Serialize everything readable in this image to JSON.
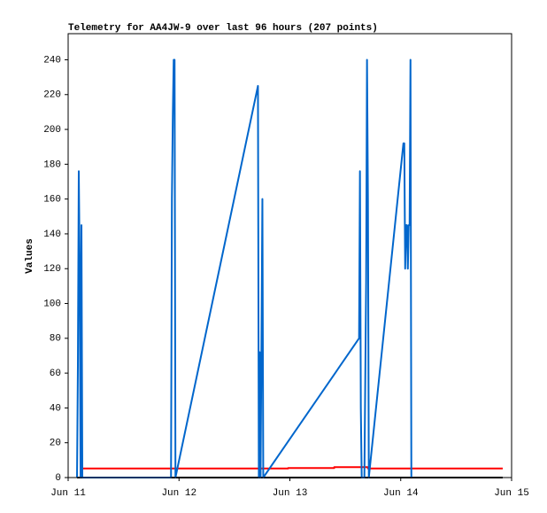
{
  "chart_data": {
    "type": "line",
    "title": "Telemetry for AA4JW-9 over last 96 hours (207 points)",
    "y_label": "Values",
    "xlim": [
      0,
      96
    ],
    "xticks": [
      {
        "value": 0,
        "label": "Jun 11"
      },
      {
        "value": 24,
        "label": "Jun 12"
      },
      {
        "value": 48,
        "label": "Jun 13"
      },
      {
        "value": 72,
        "label": "Jun 14"
      },
      {
        "value": 96,
        "label": "Jun 15"
      }
    ],
    "ylim": [
      0,
      255
    ],
    "yticks": [
      0,
      20,
      40,
      60,
      80,
      100,
      120,
      140,
      160,
      180,
      200,
      220,
      240
    ],
    "grid": false,
    "series": [
      {
        "color": "#000000",
        "x": [
          1.92,
          94.08
        ],
        "values": [
          0,
          0
        ]
      },
      {
        "color": "#ff0000",
        "x": [
          2.88,
          47.62,
          47.62,
          57.6,
          57.6,
          64.9,
          64.9,
          94.08
        ],
        "values": [
          5.2,
          5.2,
          5.5,
          5.5,
          6.0,
          6.0,
          5.2,
          5.2
        ]
      },
      {
        "color": "#0066cc",
        "x": [
          1.92,
          2.11,
          2.3,
          2.5,
          2.69,
          2.88,
          3.07,
          22.27,
          22.46,
          22.66,
          22.85,
          23.04,
          23.23,
          41.09,
          41.28,
          41.47,
          41.66,
          42.05,
          42.24,
          62.98,
          63.17,
          63.36,
          63.55,
          64.13,
          64.51,
          64.7,
          64.9,
          65.09,
          72.58,
          72.77,
          72.96,
          73.15,
          73.34,
          73.54,
          73.73,
          73.92,
          74.11,
          74.3
        ],
        "values": [
          0,
          65,
          176,
          120,
          0,
          145,
          0,
          0,
          160,
          208,
          240,
          240,
          0,
          225,
          0,
          72,
          0,
          160,
          0,
          80,
          176,
          40,
          0,
          0,
          112,
          240,
          160,
          0,
          192,
          192,
          120,
          145,
          145,
          120,
          145,
          145,
          240,
          0
        ]
      }
    ]
  }
}
